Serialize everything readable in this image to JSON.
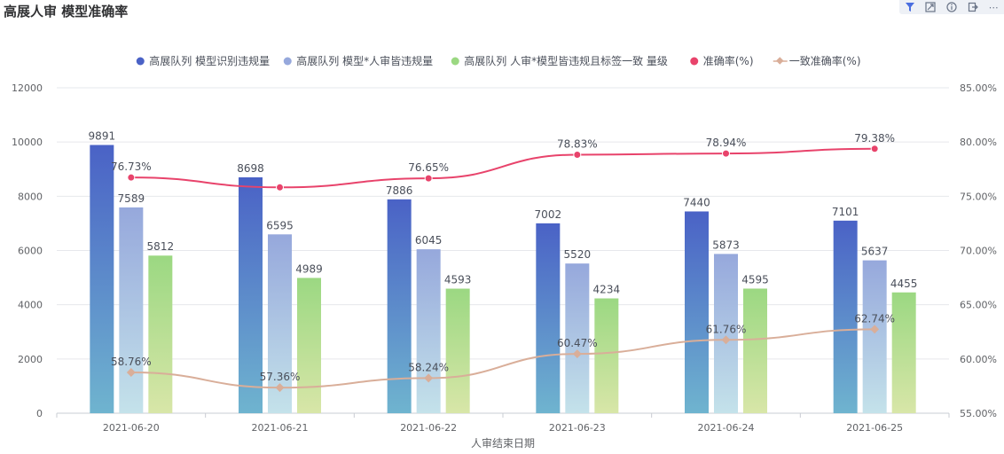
{
  "title": "高展人审 模型准确率",
  "toolbar": {
    "icons": [
      "filter-icon",
      "expand-icon",
      "info-icon",
      "export-icon",
      "more-icon"
    ],
    "more_label": "⋯"
  },
  "chart_data": {
    "type": "bar",
    "x_label": "人审结束日期",
    "categories": [
      "2021-06-20",
      "2021-06-21",
      "2021-06-22",
      "2021-06-23",
      "2021-06-24",
      "2021-06-25"
    ],
    "y_left_ticks": [
      "0",
      "2000",
      "4000",
      "6000",
      "8000",
      "10000",
      "12000"
    ],
    "y_left_range": [
      0,
      12000
    ],
    "y_right_ticks": [
      "55.00%",
      "60.00%",
      "65.00%",
      "70.00%",
      "75.00%",
      "80.00%",
      "85.00%"
    ],
    "y_right_range": [
      55,
      85
    ],
    "grid": true,
    "legend_position": "top-center",
    "series": [
      {
        "name": "高展队列 模型识别违规量",
        "kind": "bar",
        "axis": "left",
        "values": [
          9891,
          8698,
          7886,
          7002,
          7440,
          7101
        ],
        "labels": [
          "9891",
          "8698",
          "7886",
          "7002",
          "7440",
          "7101"
        ],
        "color_top": "#4a62c6",
        "color_bottom": "#6fb4cf",
        "legend_color": "#4a62c6"
      },
      {
        "name": "高展队列 模型*人审皆违规量",
        "kind": "bar",
        "axis": "left",
        "values": [
          7589,
          6595,
          6045,
          5520,
          5873,
          5637
        ],
        "labels": [
          "7589",
          "6595",
          "6045",
          "5520",
          "5873",
          "5637"
        ],
        "color_top": "#96a8dc",
        "color_bottom": "#c4e2ea",
        "legend_color": "#96a8dc"
      },
      {
        "name": "高展队列 人审*模型皆违规且标签一致 量级",
        "kind": "bar",
        "axis": "left",
        "values": [
          5812,
          4989,
          4593,
          4234,
          4595,
          4455
        ],
        "labels": [
          "5812",
          "4989",
          "4593",
          "4234",
          "4595",
          "4455"
        ],
        "color_top": "#9bd882",
        "color_bottom": "#d8e6a8",
        "legend_color": "#9bd882"
      },
      {
        "name": "准确率(%)",
        "kind": "line",
        "axis": "right",
        "values": [
          76.73,
          75.82,
          76.65,
          78.83,
          78.94,
          79.38
        ],
        "labels": [
          "76.73%",
          "",
          "76.65%",
          "78.83%",
          "78.94%",
          "79.38%"
        ],
        "color": "#e8436b"
      },
      {
        "name": "一致准确率(%)",
        "kind": "line",
        "axis": "right",
        "values": [
          58.76,
          57.36,
          58.24,
          60.47,
          61.76,
          62.74
        ],
        "labels": [
          "58.76%",
          "57.36%",
          "58.24%",
          "60.47%",
          "61.76%",
          "62.74%"
        ],
        "color": "#d9ae99"
      }
    ]
  }
}
